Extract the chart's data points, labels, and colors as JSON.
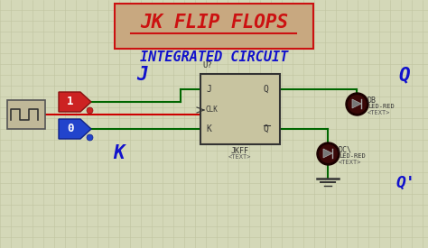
{
  "bg_color": "#d4d8b8",
  "grid_color": "#c0c4a0",
  "title_text": "JK FLIP FLOPS",
  "subtitle_text": "INTEGRATED CIRCUIT",
  "title_color": "#cc1111",
  "subtitle_color": "#1111cc",
  "title_box_color": "#c8a880",
  "title_box_edge": "#cc1111",
  "wire_color": "#006600",
  "wire_color2": "#cc0000",
  "chip_bg": "#c8c4a0",
  "chip_border": "#333333",
  "label_J": "J",
  "label_K": "K",
  "label_Q": "Q",
  "label_Qp": "Q'",
  "label_U": "U?",
  "label_JKFF": "JKFF",
  "label_TEXT": "<TEXT>",
  "label_CLK": "CLK",
  "label_1": "1",
  "label_0": "0",
  "label_DB": "DB",
  "label_DC": "DC\\",
  "label_LED_RED": "LED-RED",
  "label_TEXT2": "<TEXT>"
}
